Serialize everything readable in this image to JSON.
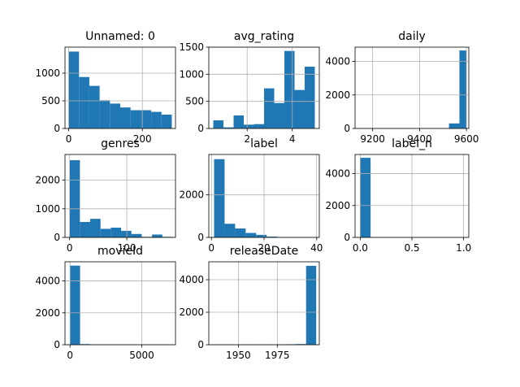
{
  "figure": {
    "background": "#ffffff",
    "bar_color": "#1f77b4",
    "grid_color": "#b0b0b0"
  },
  "chart_data": [
    {
      "type": "bar",
      "title": "Unnamed: 0",
      "xlim": [
        -10,
        290
      ],
      "ylim": [
        0,
        1470
      ],
      "bin_edges": [
        0,
        28,
        56,
        84,
        112,
        140,
        168,
        196,
        224,
        252,
        280
      ],
      "values": [
        1390,
        930,
        770,
        510,
        450,
        380,
        330,
        330,
        300,
        250,
        80
      ],
      "xticks": [
        0,
        200
      ],
      "yticks": [
        0,
        500,
        1000
      ],
      "grid": true
    },
    {
      "type": "bar",
      "title": "avg_rating",
      "xlim": [
        0.3,
        5.2
      ],
      "ylim": [
        0,
        1500
      ],
      "bin_edges": [
        0.5,
        0.95,
        1.4,
        1.85,
        2.3,
        2.75,
        3.2,
        3.65,
        4.1,
        4.55,
        5.0
      ],
      "values": [
        150,
        20,
        240,
        70,
        80,
        740,
        470,
        1430,
        710,
        1140
      ],
      "xticks": [
        2,
        4
      ],
      "yticks": [
        0,
        500,
        1000,
        1500
      ],
      "grid": true
    },
    {
      "type": "bar",
      "title": "daily",
      "xlim": [
        9125,
        9610
      ],
      "ylim": [
        0,
        4850
      ],
      "bin_edges": [
        9125,
        9169.5,
        9214,
        9258.5,
        9303,
        9347.5,
        9392,
        9436.5,
        9481,
        9525.5,
        9570,
        9600
      ],
      "values": [
        5,
        5,
        5,
        5,
        5,
        5,
        5,
        5,
        5,
        300,
        4650
      ],
      "xticks": [
        9200,
        9400,
        9600
      ],
      "yticks": [
        0,
        2000,
        4000
      ],
      "grid": true
    },
    {
      "type": "bar",
      "title": "genres",
      "xlim": [
        -8,
        185
      ],
      "ylim": [
        0,
        2900
      ],
      "bin_edges": [
        0,
        18,
        36,
        54,
        72,
        90,
        108,
        126,
        144,
        162,
        180
      ],
      "values": [
        2700,
        540,
        650,
        300,
        340,
        230,
        120,
        20,
        100,
        20
      ],
      "xticks": [
        0,
        100
      ],
      "yticks": [
        0,
        1000,
        2000
      ],
      "grid": true
    },
    {
      "type": "bar",
      "title": "label",
      "xlim": [
        -1,
        41
      ],
      "ylim": [
        0,
        3900
      ],
      "bin_edges": [
        1,
        5,
        9,
        13,
        17,
        21,
        25,
        29,
        33,
        37,
        40
      ],
      "values": [
        3680,
        640,
        420,
        210,
        120,
        40,
        20,
        10,
        5,
        5
      ],
      "xticks": [
        0,
        20,
        40
      ],
      "yticks": [
        0,
        2000
      ],
      "grid": true
    },
    {
      "type": "bar",
      "title": "label_n",
      "xlim": [
        -0.05,
        1.05
      ],
      "ylim": [
        0,
        5200
      ],
      "bin_edges": [
        0,
        0.1,
        0.2,
        0.3,
        0.4,
        0.5,
        0.6,
        0.7,
        0.8,
        0.9,
        1.0
      ],
      "values": [
        4990,
        0,
        0,
        0,
        0,
        0,
        0,
        0,
        0,
        0
      ],
      "xticks": [
        0.0,
        0.5,
        1.0
      ],
      "xtick_labels": [
        "0.0",
        "0.5",
        "1.0"
      ],
      "yticks": [
        0,
        2000,
        4000
      ],
      "grid": true
    },
    {
      "type": "bar",
      "title": "movieId",
      "xlim": [
        -350,
        7350
      ],
      "ylim": [
        0,
        5200
      ],
      "bin_edges": [
        0,
        700,
        1400,
        2100,
        2800,
        3500,
        4200,
        4900,
        5600,
        6300,
        7000
      ],
      "values": [
        4960,
        40,
        5,
        5,
        5,
        5,
        5,
        5,
        5,
        5
      ],
      "xticks": [
        0,
        5000
      ],
      "yticks": [
        0,
        2000,
        4000
      ],
      "grid": true
    },
    {
      "type": "bar",
      "title": "releaseDate",
      "xlim": [
        1931,
        2002
      ],
      "ylim": [
        0,
        5100
      ],
      "bin_edges": [
        1935,
        1941.5,
        1948,
        1954.5,
        1961,
        1967.5,
        1974,
        1980.5,
        1987,
        1993.5,
        2000
      ],
      "values": [
        5,
        5,
        5,
        20,
        5,
        15,
        15,
        30,
        40,
        4850
      ],
      "xticks": [
        1950,
        1975
      ],
      "yticks": [
        0,
        2000,
        4000
      ],
      "grid": true
    }
  ]
}
